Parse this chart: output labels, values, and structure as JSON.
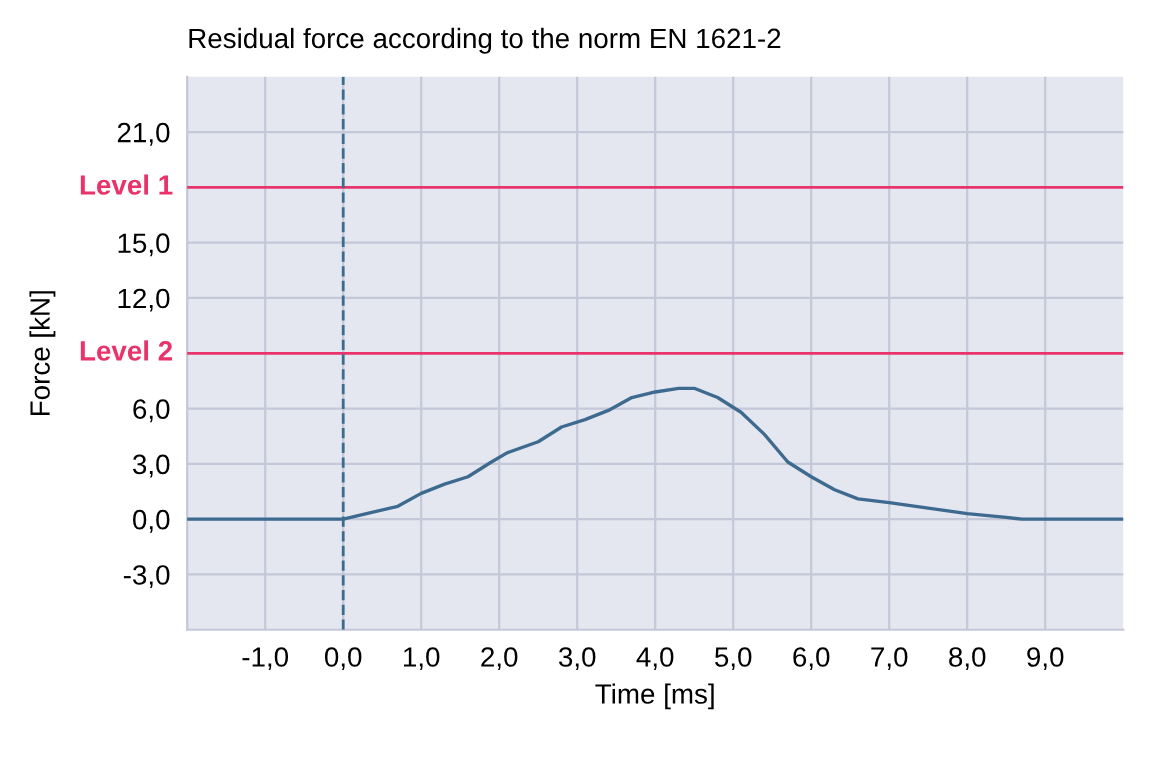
{
  "chart_data": {
    "type": "line",
    "title": "Residual force according to the norm EN 1621-2",
    "xlabel": "Time [ms]",
    "ylabel": "Force [kN]",
    "x": [
      -2,
      0,
      0.3,
      0.7,
      1.0,
      1.3,
      1.6,
      1.9,
      2.1,
      2.5,
      2.8,
      3.1,
      3.4,
      3.7,
      4.0,
      4.3,
      4.5,
      4.8,
      5.1,
      5.4,
      5.7,
      6.0,
      6.3,
      6.6,
      7.0,
      7.5,
      8.0,
      8.5,
      8.7,
      10
    ],
    "series": [
      {
        "color": "#3d6a8e",
        "values": [
          0,
          0,
          0.3,
          0.7,
          1.4,
          1.9,
          2.3,
          3.1,
          3.6,
          4.2,
          5.0,
          5.4,
          5.9,
          6.6,
          6.9,
          7.1,
          7.1,
          6.6,
          5.8,
          4.6,
          3.1,
          2.3,
          1.6,
          1.1,
          0.9,
          0.6,
          0.3,
          0.1,
          0,
          0
        ]
      }
    ],
    "xlim": [
      -2,
      10
    ],
    "ylim": [
      -6,
      24
    ],
    "xticks": [
      {
        "value": -1,
        "label": "-1,0"
      },
      {
        "value": 0,
        "label": "0,0"
      },
      {
        "value": 1,
        "label": "1,0"
      },
      {
        "value": 2,
        "label": "2,0"
      },
      {
        "value": 3,
        "label": "3,0"
      },
      {
        "value": 4,
        "label": "4,0"
      },
      {
        "value": 5,
        "label": "5,0"
      },
      {
        "value": 6,
        "label": "6,0"
      },
      {
        "value": 7,
        "label": "7,0"
      },
      {
        "value": 8,
        "label": "8,0"
      },
      {
        "value": 9,
        "label": "9,0"
      }
    ],
    "yticks": [
      {
        "value": -3,
        "label": "-3,0"
      },
      {
        "value": 0,
        "label": "0,0"
      },
      {
        "value": 3,
        "label": "3,0"
      },
      {
        "value": 6,
        "label": "6,0"
      },
      {
        "value": 12,
        "label": "12,0"
      },
      {
        "value": 15,
        "label": "15,0"
      },
      {
        "value": 21,
        "label": "21,0"
      }
    ],
    "ref_lines": [
      {
        "axis": "y",
        "value": 18,
        "label": "Level 1",
        "color": "#e8336b"
      },
      {
        "axis": "y",
        "value": 9,
        "label": "Level 2",
        "color": "#e8336b"
      },
      {
        "axis": "x",
        "value": 0,
        "color": "#3d6a8e",
        "line_style": "dashed"
      }
    ],
    "grid": true,
    "legend": false,
    "marker": "none",
    "line_style": "solid"
  }
}
